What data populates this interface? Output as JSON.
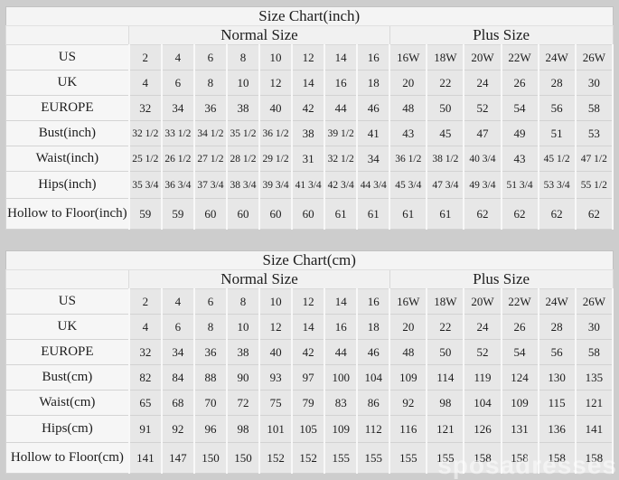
{
  "watermark": "sposadresses",
  "chart_data": [
    {
      "type": "table",
      "title": "Size Chart(inch)",
      "group_headers": {
        "normal": "Normal Size",
        "plus": "Plus Size"
      },
      "columns_normal": 8,
      "columns_plus": 6,
      "rows": [
        {
          "label": "US",
          "normal": [
            "2",
            "4",
            "6",
            "8",
            "10",
            "12",
            "14",
            "16"
          ],
          "plus": [
            "16W",
            "18W",
            "20W",
            "22W",
            "24W",
            "26W"
          ]
        },
        {
          "label": "UK",
          "normal": [
            "4",
            "6",
            "8",
            "10",
            "12",
            "14",
            "16",
            "18"
          ],
          "plus": [
            "20",
            "22",
            "24",
            "26",
            "28",
            "30"
          ]
        },
        {
          "label": "EUROPE",
          "normal": [
            "32",
            "34",
            "36",
            "38",
            "40",
            "42",
            "44",
            "46"
          ],
          "plus": [
            "48",
            "50",
            "52",
            "54",
            "56",
            "58"
          ]
        },
        {
          "label": "Bust(inch)",
          "normal": [
            "32 1/2",
            "33 1/2",
            "34 1/2",
            "35 1/2",
            "36 1/2",
            "38",
            "39 1/2",
            "41"
          ],
          "plus": [
            "43",
            "45",
            "47",
            "49",
            "51",
            "53"
          ]
        },
        {
          "label": "Waist(inch)",
          "normal": [
            "25 1/2",
            "26 1/2",
            "27 1/2",
            "28 1/2",
            "29 1/2",
            "31",
            "32 1/2",
            "34"
          ],
          "plus": [
            "36 1/2",
            "38 1/2",
            "40 3/4",
            "43",
            "45 1/2",
            "47 1/2"
          ]
        },
        {
          "label": "Hips(inch)",
          "normal": [
            "35 3/4",
            "36 3/4",
            "37 3/4",
            "38 3/4",
            "39 3/4",
            "41 3/4",
            "42 3/4",
            "44 3/4"
          ],
          "plus": [
            "45 3/4",
            "47 3/4",
            "49 3/4",
            "51 3/4",
            "53 3/4",
            "55 1/2"
          ]
        },
        {
          "label": "Hollow to Floor(inch)",
          "normal": [
            "59",
            "59",
            "60",
            "60",
            "60",
            "60",
            "61",
            "61"
          ],
          "plus": [
            "61",
            "61",
            "62",
            "62",
            "62",
            "62"
          ]
        }
      ]
    },
    {
      "type": "table",
      "title": "Size Chart(cm)",
      "group_headers": {
        "normal": "Normal Size",
        "plus": "Plus Size"
      },
      "columns_normal": 8,
      "columns_plus": 6,
      "rows": [
        {
          "label": "US",
          "normal": [
            "2",
            "4",
            "6",
            "8",
            "10",
            "12",
            "14",
            "16"
          ],
          "plus": [
            "16W",
            "18W",
            "20W",
            "22W",
            "24W",
            "26W"
          ]
        },
        {
          "label": "UK",
          "normal": [
            "4",
            "6",
            "8",
            "10",
            "12",
            "14",
            "16",
            "18"
          ],
          "plus": [
            "20",
            "22",
            "24",
            "26",
            "28",
            "30"
          ]
        },
        {
          "label": "EUROPE",
          "normal": [
            "32",
            "34",
            "36",
            "38",
            "40",
            "42",
            "44",
            "46"
          ],
          "plus": [
            "48",
            "50",
            "52",
            "54",
            "56",
            "58"
          ]
        },
        {
          "label": "Bust(cm)",
          "normal": [
            "82",
            "84",
            "88",
            "90",
            "93",
            "97",
            "100",
            "104"
          ],
          "plus": [
            "109",
            "114",
            "119",
            "124",
            "130",
            "135"
          ]
        },
        {
          "label": "Waist(cm)",
          "normal": [
            "65",
            "68",
            "70",
            "72",
            "75",
            "79",
            "83",
            "86"
          ],
          "plus": [
            "92",
            "98",
            "104",
            "109",
            "115",
            "121"
          ]
        },
        {
          "label": "Hips(cm)",
          "normal": [
            "91",
            "92",
            "96",
            "98",
            "101",
            "105",
            "109",
            "112"
          ],
          "plus": [
            "116",
            "121",
            "126",
            "131",
            "136",
            "141"
          ]
        },
        {
          "label": "Hollow to Floor(cm)",
          "normal": [
            "141",
            "147",
            "150",
            "150",
            "152",
            "152",
            "155",
            "155"
          ],
          "plus": [
            "155",
            "155",
            "158",
            "158",
            "158",
            "158"
          ]
        }
      ]
    }
  ]
}
